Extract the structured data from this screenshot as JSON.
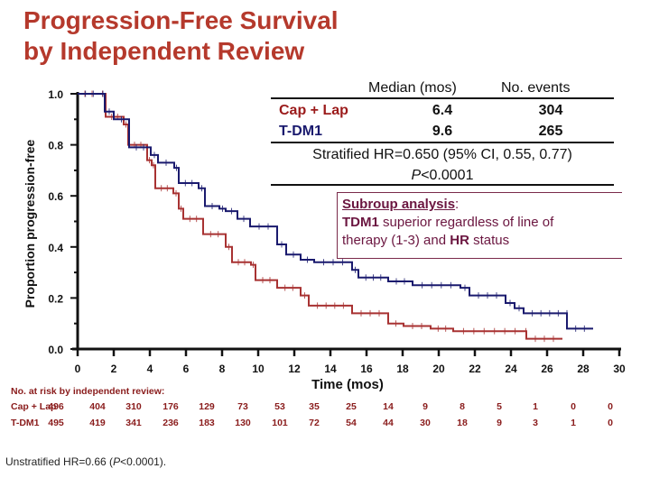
{
  "slide_title_line1": "Progression-Free Survival",
  "slide_title_line2": "by Independent Review",
  "legend": {
    "header_median": "Median (mos)",
    "header_events": "No. events",
    "rows": [
      {
        "name": "Cap + Lap",
        "median": "6.4",
        "events": "304",
        "color": "#9b1b1b"
      },
      {
        "name": "T-DM1",
        "median": "9.6",
        "events": "265",
        "color": "#1a1a6e"
      }
    ],
    "hr_text": "Stratified HR=0.650 (95% CI, 0.55, 0.77)",
    "p_prefix": "P",
    "p_text": "<0.0001"
  },
  "subgroup": {
    "title": "Subroup analysis",
    "colon": ":",
    "line1_bold": "TDM1",
    "line1_rest": " superior regardless of line of",
    "line2_rest": "therapy (1-3) and ",
    "line2_bold": "HR",
    "line2_end": " status"
  },
  "risk_table": {
    "title": "No. at risk by independent review:",
    "rows": [
      {
        "name": "Cap + Lap",
        "values": [
          "496",
          "404",
          "310",
          "176",
          "129",
          "73",
          "53",
          "35",
          "25",
          "14",
          "9",
          "8",
          "5",
          "1",
          "0",
          "0"
        ]
      },
      {
        "name": "T-DM1",
        "values": [
          "495",
          "419",
          "341",
          "236",
          "183",
          "130",
          "101",
          "72",
          "54",
          "44",
          "30",
          "18",
          "9",
          "3",
          "1",
          "0"
        ]
      }
    ]
  },
  "footnote_prefix": "Unstratified HR=0.66 (",
  "footnote_p": "P",
  "footnote_suffix": "<0.0001).",
  "chart_data": {
    "type": "line",
    "step": true,
    "title": "Progression-Free Survival by Independent Review",
    "xlabel": "Time (mos)",
    "ylabel": "Proportion progression-free",
    "xlim": [
      0,
      30
    ],
    "ylim": [
      0,
      1.0
    ],
    "xticks": [
      0,
      2,
      4,
      6,
      8,
      10,
      12,
      14,
      16,
      18,
      20,
      22,
      24,
      26,
      28,
      30
    ],
    "yticks": [
      "0.0",
      "0.2",
      "0.4",
      "0.6",
      "0.8",
      "1.0"
    ],
    "ytick_values": [
      0,
      0.2,
      0.4,
      0.6,
      0.8,
      1.0
    ],
    "grid": false,
    "series": [
      {
        "name": "T-DM1",
        "color": "#1a1a6e",
        "points": [
          [
            0,
            1.0
          ],
          [
            1.3,
            1.0
          ],
          [
            1.5,
            0.93
          ],
          [
            2.0,
            0.9
          ],
          [
            2.85,
            0.79
          ],
          [
            4.05,
            0.76
          ],
          [
            4.45,
            0.73
          ],
          [
            5.35,
            0.71
          ],
          [
            5.6,
            0.65
          ],
          [
            6.7,
            0.63
          ],
          [
            7.05,
            0.56
          ],
          [
            7.85,
            0.55
          ],
          [
            8.2,
            0.54
          ],
          [
            8.85,
            0.51
          ],
          [
            9.55,
            0.48
          ],
          [
            11.05,
            0.41
          ],
          [
            11.55,
            0.37
          ],
          [
            12.35,
            0.35
          ],
          [
            13.1,
            0.34
          ],
          [
            15.2,
            0.31
          ],
          [
            15.55,
            0.28
          ],
          [
            17.2,
            0.265
          ],
          [
            18.55,
            0.25
          ],
          [
            21.2,
            0.24
          ],
          [
            21.7,
            0.21
          ],
          [
            23.7,
            0.18
          ],
          [
            24.2,
            0.16
          ],
          [
            24.7,
            0.14
          ],
          [
            27.1,
            0.14
          ],
          [
            27.1,
            0.08
          ],
          [
            28.55,
            0.08
          ]
        ]
      },
      {
        "name": "Cap + Lap",
        "color": "#a83232",
        "points": [
          [
            0,
            1.0
          ],
          [
            1.2,
            1.0
          ],
          [
            1.55,
            0.91
          ],
          [
            2.55,
            0.88
          ],
          [
            2.8,
            0.8
          ],
          [
            3.85,
            0.74
          ],
          [
            4.1,
            0.72
          ],
          [
            4.3,
            0.63
          ],
          [
            5.3,
            0.61
          ],
          [
            5.6,
            0.55
          ],
          [
            5.85,
            0.51
          ],
          [
            6.95,
            0.45
          ],
          [
            8.2,
            0.4
          ],
          [
            8.55,
            0.34
          ],
          [
            9.6,
            0.33
          ],
          [
            9.85,
            0.27
          ],
          [
            11.05,
            0.24
          ],
          [
            12.35,
            0.21
          ],
          [
            12.8,
            0.17
          ],
          [
            15.2,
            0.14
          ],
          [
            17.2,
            0.1
          ],
          [
            18.05,
            0.09
          ],
          [
            19.55,
            0.08
          ],
          [
            20.8,
            0.07
          ],
          [
            24.8,
            0.07
          ],
          [
            24.85,
            0.04
          ],
          [
            26.85,
            0.04
          ]
        ]
      }
    ]
  }
}
